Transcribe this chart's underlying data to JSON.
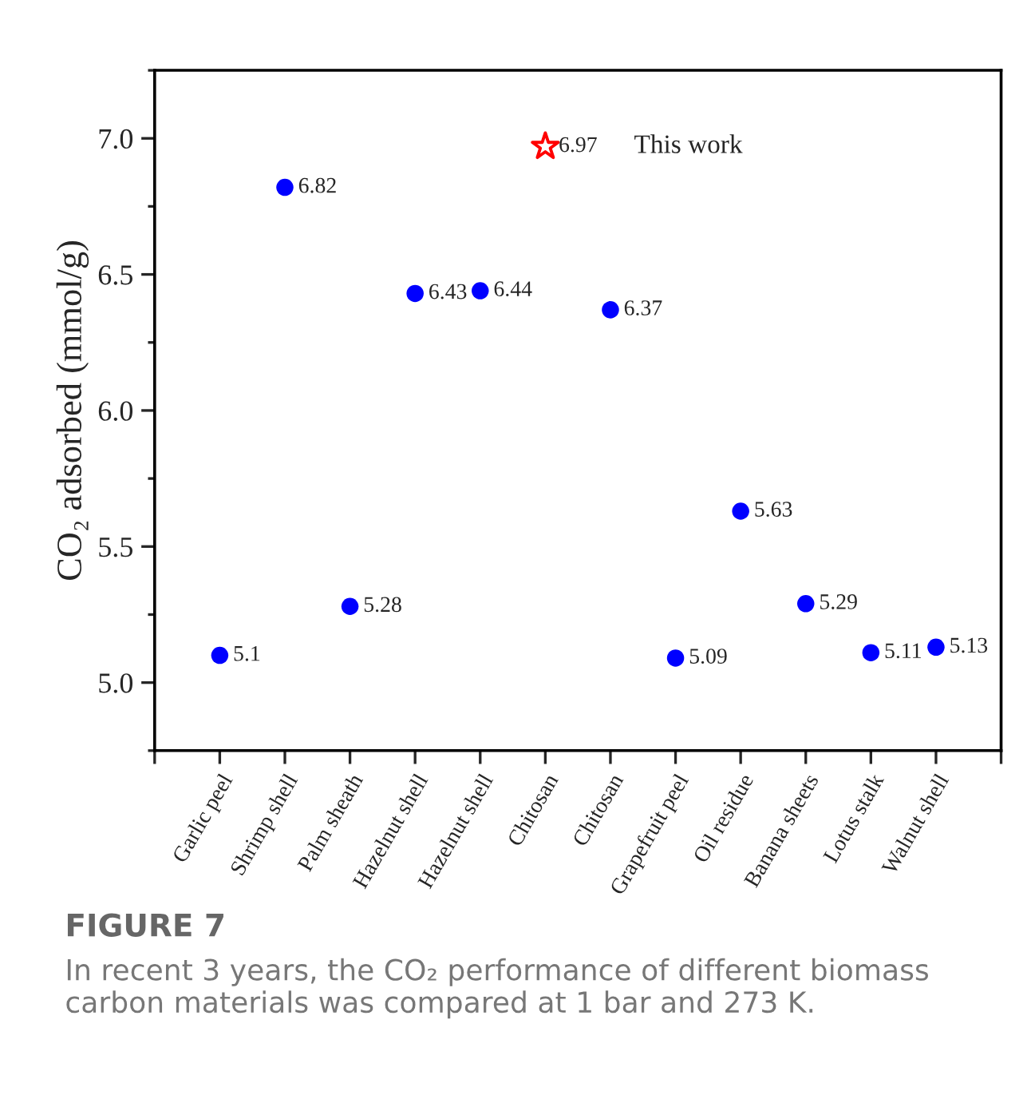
{
  "chart_data": {
    "type": "scatter",
    "categories": [
      "Garlic peel",
      "Shrimp shell",
      "Palm sheath",
      "Hazelnut shell",
      "Hazelnut shell",
      "Chitosan",
      "Chitosan",
      "Grapefruit peel",
      "Oil residue",
      "Banana sheets",
      "Lotus stalk",
      "Walnut shell"
    ],
    "series": [
      {
        "color": "#0000ff",
        "marker": "circle",
        "values": [
          5.1,
          6.82,
          5.28,
          6.43,
          6.44,
          null,
          6.37,
          5.09,
          5.63,
          5.29,
          5.11,
          5.13
        ]
      },
      {
        "name": "This work",
        "color": "#ff0000",
        "marker": "star",
        "values": [
          null,
          null,
          null,
          null,
          null,
          6.97,
          null,
          null,
          null,
          null,
          null,
          null
        ]
      }
    ],
    "ylabel": "CO₂ adsorbed (mmol/g)",
    "ylim": [
      4.75,
      7.25
    ],
    "yticks": [
      {
        "value": 5,
        "label": "5.0"
      },
      {
        "value": 5.5,
        "label": "5.5"
      },
      {
        "value": 6,
        "label": "6.0"
      },
      {
        "value": 6.5,
        "label": "6.5"
      },
      {
        "value": 7,
        "label": "7.0"
      }
    ],
    "data_labels": true,
    "legend": false,
    "grid": false,
    "annotations": [
      "FIGURE 7",
      "In recent 3 years, the CO₂ performance of different biomass carbon materials was compared at 1 bar and 273 K."
    ]
  }
}
